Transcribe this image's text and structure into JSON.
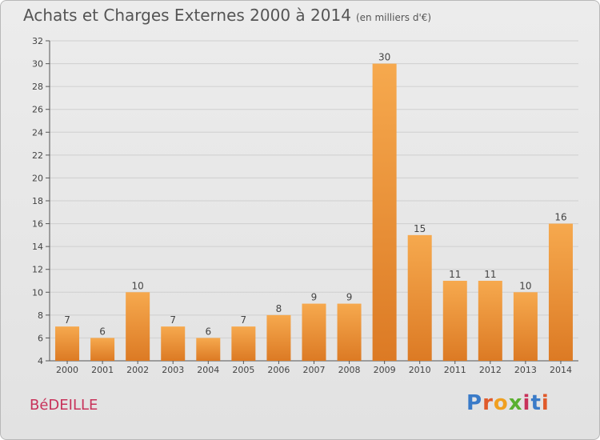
{
  "title": "Achats et Charges Externes 2000 à 2014",
  "subtitle": "(en milliers d'€)",
  "commune": "BéDEILLE",
  "logo": {
    "text": "Proxiti",
    "colors": [
      "#3a7bc8",
      "#e05a2a",
      "#f0a020",
      "#5ab030",
      "#c8325a",
      "#3a7bc8",
      "#e05a2a"
    ]
  },
  "colors": {
    "bar_light": "#f6a94e",
    "bar_dark": "#dc7a24",
    "grid": "#cfcfcf"
  },
  "chart_data": {
    "type": "bar",
    "categories": [
      "2000",
      "2001",
      "2002",
      "2003",
      "2004",
      "2005",
      "2006",
      "2007",
      "2008",
      "2009",
      "2010",
      "2011",
      "2012",
      "2013",
      "2014"
    ],
    "values": [
      7,
      6,
      10,
      7,
      6,
      7,
      8,
      9,
      9,
      30,
      15,
      11,
      11,
      10,
      16
    ],
    "ylim": [
      4,
      32
    ],
    "yticks": [
      4,
      6,
      8,
      10,
      12,
      14,
      16,
      18,
      20,
      22,
      24,
      26,
      28,
      30,
      32
    ],
    "grid": true,
    "data_labels": true
  }
}
